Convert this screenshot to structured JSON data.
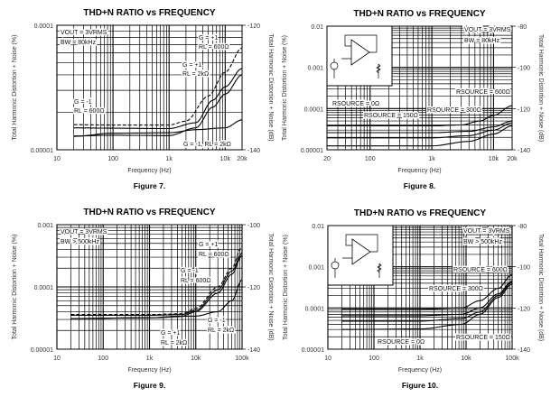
{
  "chart_data": [
    {
      "type": "line",
      "title": "THD+N RATIO vs FREQUENCY",
      "figure": "Figure 7.",
      "xlabel": "Frequency (Hz)",
      "ylabel": "Total Harmonic Distortion + Noise (%)",
      "ylabel_right": "Total Harmonic Distortion + Noise (dB)",
      "xscale": "log",
      "yscale": "log",
      "xlim": [
        10,
        20000
      ],
      "ylim": [
        1e-05,
        0.0001
      ],
      "ylim_right": [
        -140,
        -120
      ],
      "xticks": [
        {
          "v": 10,
          "label": "10"
        },
        {
          "v": 100,
          "label": "100"
        },
        {
          "v": 1000,
          "label": "1k"
        },
        {
          "v": 10000,
          "label": "10k"
        },
        {
          "v": 20000,
          "label": "20k"
        }
      ],
      "yticks": [
        {
          "v": 0.0001,
          "label": "0.0001"
        },
        {
          "v": 1e-05,
          "label": "0.00001"
        }
      ],
      "yticks_right": [
        {
          "v": -120,
          "label": "-120"
        },
        {
          "v": -140,
          "label": "-140"
        }
      ],
      "grid": true,
      "annotations": [
        "VOUT = 3VRMS",
        "BW = 80kHz",
        "G = +1",
        "RL = 600Ω",
        "G = +1",
        "RL = 2kΩ",
        "G = -1",
        "RL = 600Ω",
        "G = -1, RL = 2kΩ"
      ],
      "series": [
        {
          "name": "G = +1, RL = 600Ω",
          "dash": true,
          "points": [
            [
              20,
              1.59e-05
            ],
            [
              100,
              1.58e-05
            ],
            [
              1000,
              1.58e-05
            ],
            [
              2000,
              1.7e-05
            ],
            [
              5000,
              2.7e-05
            ],
            [
              10000,
              4.2e-05
            ],
            [
              20000,
              6.6e-05
            ]
          ]
        },
        {
          "name": "G = -1, RL = 600Ω",
          "dash": false,
          "points": [
            [
              20,
              1.5e-05
            ],
            [
              100,
              1.49e-05
            ],
            [
              1000,
              1.48e-05
            ],
            [
              3000,
              1.65e-05
            ],
            [
              6000,
              2.5e-05
            ],
            [
              10000,
              3.2e-05
            ],
            [
              20000,
              4.5e-05
            ]
          ]
        },
        {
          "name": "G = +1, RL = 2kΩ",
          "dash": false,
          "points": [
            [
              20,
              1.29e-05
            ],
            [
              100,
              1.31e-05
            ],
            [
              1000,
              1.3e-05
            ],
            [
              3000,
              1.5e-05
            ],
            [
              6000,
              2.2e-05
            ],
            [
              10000,
              2.8e-05
            ],
            [
              20000,
              4e-05
            ]
          ]
        },
        {
          "name": "G = -1, RL = 2kΩ",
          "dash": false,
          "points": [
            [
              20,
              1.28e-05
            ],
            [
              100,
              1.36e-05
            ],
            [
              1000,
              1.37e-05
            ],
            [
              3000,
              1.45e-05
            ],
            [
              10000,
              1.5e-05
            ],
            [
              20000,
              1.74e-05
            ]
          ]
        }
      ]
    },
    {
      "type": "line",
      "title": "THD+N RATIO vs FREQUENCY",
      "figure": "Figure 8.",
      "xlabel": "Frequency (Hz)",
      "ylabel": "Total Harmonic Distortion + Noise (%)",
      "ylabel_right": "Total Harmonic Distortion + Noise (dB)",
      "xscale": "log",
      "yscale": "log",
      "xlim": [
        20,
        20000
      ],
      "ylim": [
        1e-05,
        0.01
      ],
      "ylim_right": [
        -140,
        -80
      ],
      "xticks": [
        {
          "v": 20,
          "label": "20"
        },
        {
          "v": 100,
          "label": "100"
        },
        {
          "v": 1000,
          "label": "1k"
        },
        {
          "v": 10000,
          "label": "10k"
        },
        {
          "v": 20000,
          "label": "20k"
        }
      ],
      "yticks": [
        {
          "v": 0.01,
          "label": "0.01"
        },
        {
          "v": 0.001,
          "label": "0.001"
        },
        {
          "v": 0.0001,
          "label": "0.0001"
        },
        {
          "v": 1e-05,
          "label": "0.00001"
        }
      ],
      "yticks_right": [
        {
          "v": -80,
          "label": "-80"
        },
        {
          "v": -100,
          "label": "-100"
        },
        {
          "v": -120,
          "label": "-120"
        },
        {
          "v": -140,
          "label": "-140"
        }
      ],
      "grid": true,
      "inset": "schematic",
      "annotations": [
        "VOUT = 3VRMS",
        "BW = 80kHz",
        "RSOURCE = 600Ω",
        "RSOURCE = 300Ω",
        "RSOURCE = 150Ω",
        "RSOURCE = 0Ω"
      ],
      "series": [
        {
          "name": "RSOURCE = 600Ω",
          "dash": false,
          "points": [
            [
              20,
              3.8e-05
            ],
            [
              1000,
              3.8e-05
            ],
            [
              3000,
              4e-05
            ],
            [
              6000,
              5e-05
            ],
            [
              10000,
              6.8e-05
            ],
            [
              20000,
              0.000118
            ]
          ]
        },
        {
          "name": "RSOURCE = 300Ω",
          "dash": false,
          "points": [
            [
              20,
              2.6e-05
            ],
            [
              1000,
              2.6e-05
            ],
            [
              4000,
              2.8e-05
            ],
            [
              10000,
              3.6e-05
            ],
            [
              20000,
              5e-05
            ]
          ]
        },
        {
          "name": "RSOURCE = 150Ω",
          "dash": false,
          "points": [
            [
              20,
              1.95e-05
            ],
            [
              1000,
              1.95e-05
            ],
            [
              4000,
              2.2e-05
            ],
            [
              10000,
              3e-05
            ],
            [
              20000,
              4.5e-05
            ]
          ]
        },
        {
          "name": "RSOURCE = 0Ω",
          "dash": false,
          "points": [
            [
              20,
              1.24e-05
            ],
            [
              1000,
              1.24e-05
            ],
            [
              4000,
              1.6e-05
            ],
            [
              10000,
              2.4e-05
            ],
            [
              20000,
              3.8e-05
            ]
          ]
        }
      ]
    },
    {
      "type": "line",
      "title": "THD+N RATIO vs FREQUENCY",
      "figure": "Figure 9.",
      "xlabel": "Frequency (Hz)",
      "ylabel": "Total Harmonic Distortion + Noise (%)",
      "ylabel_right": "Total Harmonic Distortion + Noise (dB)",
      "xscale": "log",
      "yscale": "log",
      "xlim": [
        10,
        100000
      ],
      "ylim": [
        1e-05,
        0.001
      ],
      "ylim_right": [
        -140,
        -100
      ],
      "xticks": [
        {
          "v": 10,
          "label": "10"
        },
        {
          "v": 100,
          "label": "100"
        },
        {
          "v": 1000,
          "label": "1k"
        },
        {
          "v": 10000,
          "label": "10k"
        },
        {
          "v": 100000,
          "label": "100k"
        }
      ],
      "yticks": [
        {
          "v": 0.001,
          "label": "0.001"
        },
        {
          "v": 0.0001,
          "label": "0.0001"
        },
        {
          "v": 1e-05,
          "label": "0.00001"
        }
      ],
      "yticks_right": [
        {
          "v": -100,
          "label": "-100"
        },
        {
          "v": -120,
          "label": "-120"
        },
        {
          "v": -140,
          "label": "-140"
        }
      ],
      "grid": true,
      "annotations": [
        "VOUT = 3VRMS",
        "BW > 500kHz",
        "G = +1",
        "RL = 600Ω",
        "G = -1",
        "RL = 600Ω",
        "G = -1",
        "RL = 2kΩ",
        "G = +1",
        "RL = 2kΩ"
      ],
      "series": [
        {
          "name": "G = +1, RL = 600Ω",
          "dash": true,
          "points": [
            [
              20,
              3.6e-05
            ],
            [
              1000,
              3.6e-05
            ],
            [
              5000,
              3.7e-05
            ],
            [
              10000,
              4.5e-05
            ],
            [
              30000,
              0.0001
            ],
            [
              60000,
              0.0002
            ],
            [
              100000,
              0.00045
            ]
          ]
        },
        {
          "name": "G = -1, RL = 600Ω",
          "dash": false,
          "points": [
            [
              20,
              3.5e-05
            ],
            [
              1000,
              3.5e-05
            ],
            [
              5000,
              3.6e-05
            ],
            [
              10000,
              4.2e-05
            ],
            [
              30000,
              9e-05
            ],
            [
              60000,
              0.00018
            ],
            [
              100000,
              0.00035
            ]
          ]
        },
        {
          "name": "G = +1, RL = 2kΩ",
          "dash": false,
          "points": [
            [
              20,
              3.1e-05
            ],
            [
              1000,
              3.2e-05
            ],
            [
              5000,
              3.4e-05
            ],
            [
              10000,
              4e-05
            ],
            [
              30000,
              8e-05
            ],
            [
              60000,
              0.00016
            ],
            [
              100000,
              0.00032
            ]
          ]
        },
        {
          "name": "G = -1, RL = 2kΩ",
          "dash": false,
          "points": [
            [
              20,
              3.1e-05
            ],
            [
              1000,
              3.2e-05
            ],
            [
              10000,
              3.4e-05
            ],
            [
              30000,
              4e-05
            ],
            [
              60000,
              6e-05
            ],
            [
              100000,
              0.00013
            ]
          ]
        }
      ]
    },
    {
      "type": "line",
      "title": "THD+N RATIO vs FREQUENCY",
      "figure": "Figure 10.",
      "xlabel": "Frequency (Hz)",
      "ylabel": "Total Harmonic Distortion + Noise (%)",
      "ylabel_right": "Total Harmonic Distortion + Noise (dB)",
      "xscale": "log",
      "yscale": "log",
      "xlim": [
        10,
        100000
      ],
      "ylim": [
        1e-05,
        0.01
      ],
      "ylim_right": [
        -140,
        -80
      ],
      "xticks": [
        {
          "v": 10,
          "label": "10"
        },
        {
          "v": 100,
          "label": "100"
        },
        {
          "v": 1000,
          "label": "1k"
        },
        {
          "v": 10000,
          "label": "10k"
        },
        {
          "v": 100000,
          "label": "100k"
        }
      ],
      "yticks": [
        {
          "v": 0.01,
          "label": "0.01"
        },
        {
          "v": 0.001,
          "label": "0.001"
        },
        {
          "v": 0.0001,
          "label": "0.0001"
        },
        {
          "v": 1e-05,
          "label": "0.00001"
        }
      ],
      "yticks_right": [
        {
          "v": -80,
          "label": "-80"
        },
        {
          "v": -100,
          "label": "-100"
        },
        {
          "v": -120,
          "label": "-120"
        },
        {
          "v": -140,
          "label": "-140"
        }
      ],
      "grid": true,
      "inset": "schematic",
      "annotations": [
        "VOUT = 3VRMS",
        "BW > 500kHz",
        "RSOURCE = 600Ω",
        "RSOURCE = 300Ω",
        "RSOURCE = 150Ω",
        "RSOURCE = 0Ω"
      ],
      "series": [
        {
          "name": "RSOURCE = 600Ω",
          "dash": false,
          "points": [
            [
              20,
              9.3e-05
            ],
            [
              1000,
              9.3e-05
            ],
            [
              8000,
              0.0001
            ],
            [
              20000,
              0.00015
            ],
            [
              50000,
              0.0003
            ],
            [
              100000,
              0.00065
            ]
          ]
        },
        {
          "name": "RSOURCE = 300Ω",
          "dash": false,
          "points": [
            [
              20,
              6.5e-05
            ],
            [
              1000,
              6.5e-05
            ],
            [
              8000,
              7e-05
            ],
            [
              20000,
              0.0001
            ],
            [
              50000,
              0.00022
            ],
            [
              100000,
              0.00045
            ]
          ]
        },
        {
          "name": "RSOURCE = 150Ω",
          "dash": false,
          "points": [
            [
              20,
              4.8e-05
            ],
            [
              1000,
              4.8e-05
            ],
            [
              8000,
              5.5e-05
            ],
            [
              20000,
              8e-05
            ],
            [
              50000,
              0.0002
            ],
            [
              100000,
              0.00042
            ]
          ]
        },
        {
          "name": "RSOURCE = 0Ω",
          "dash": false,
          "points": [
            [
              20,
              3e-05
            ],
            [
              1000,
              3.1e-05
            ],
            [
              8000,
              4e-05
            ],
            [
              20000,
              7e-05
            ],
            [
              50000,
              0.00018
            ],
            [
              100000,
              0.00038
            ]
          ]
        }
      ]
    }
  ]
}
